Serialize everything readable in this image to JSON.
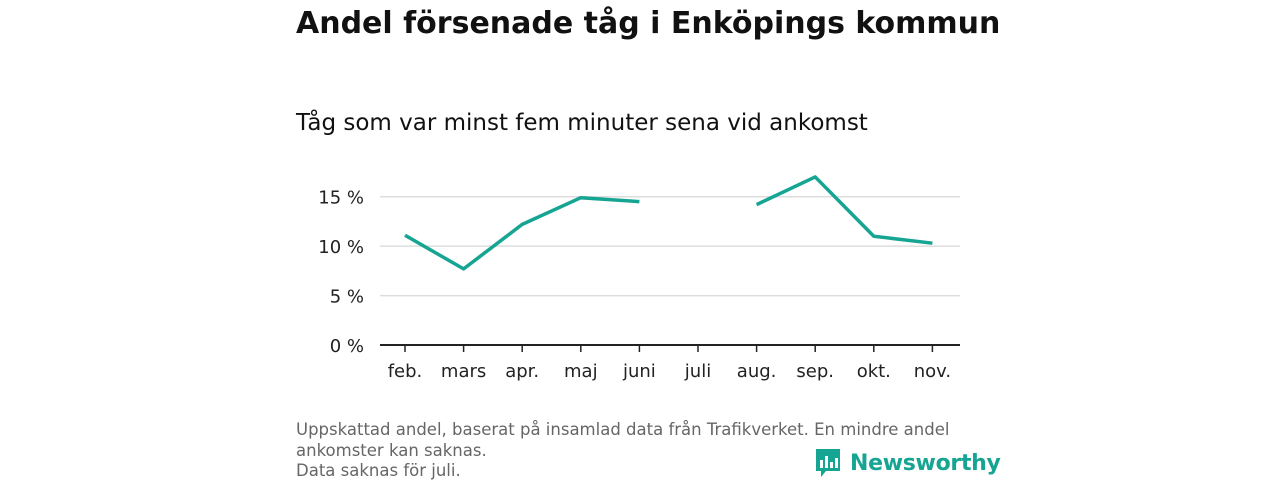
{
  "header": {
    "title": "Andel försenade tåg i Enköpings kommun",
    "subtitle": "Tåg som var minst fem minuter sena vid ankomst"
  },
  "footnote": {
    "line1": "Uppskattad andel, baserat på insamlad data från Trafikverket. En mindre andel",
    "line2": "ankomster kan saknas.",
    "line3": "Data saknas för juli."
  },
  "brand": {
    "name": "Newsworthy",
    "color": "#16a493"
  },
  "chart_data": {
    "type": "line",
    "title": "Andel försenade tåg i Enköpings kommun",
    "subtitle": "Tåg som var minst fem minuter sena vid ankomst",
    "categories": [
      "feb.",
      "mars",
      "apr.",
      "maj",
      "juni",
      "juli",
      "aug.",
      "sep.",
      "okt.",
      "nov."
    ],
    "series": [
      {
        "values": [
          11.1,
          7.7,
          12.2,
          14.9,
          14.5,
          null,
          14.2,
          17.0,
          11.0,
          10.3
        ],
        "color": "#16a493"
      }
    ],
    "yticks": [
      0,
      5,
      10,
      15
    ],
    "yticklabels": [
      "0 %",
      "5 %",
      "10 %",
      "15 %"
    ],
    "ylim": [
      0,
      17.5
    ],
    "grid": true,
    "xlabel": "",
    "ylabel": ""
  }
}
